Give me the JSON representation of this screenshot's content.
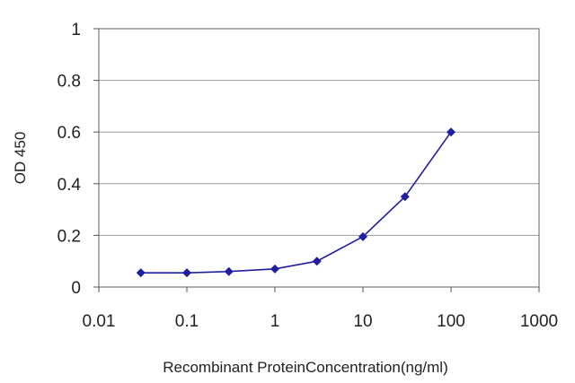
{
  "chart_data": {
    "type": "line",
    "xscale": "log",
    "xlim": [
      0.01,
      1000
    ],
    "ylim": [
      0,
      1
    ],
    "grid": "horizontal",
    "ylabel": "OD 450",
    "xlabel": "Recombinant ProteinConcentration(ng/ml)",
    "yticks": [
      "0",
      "0.2",
      "0.4",
      "0.6",
      "0.8",
      "1"
    ],
    "xticks": [
      "0.01",
      "0.1",
      "1",
      "10",
      "100",
      "1000"
    ],
    "ytick_values": [
      0,
      0.2,
      0.4,
      0.6,
      0.8,
      1
    ],
    "xtick_values": [
      0.01,
      0.1,
      1,
      10,
      100,
      1000
    ],
    "series": [
      {
        "color": "#1f1fa0",
        "marker": "diamond",
        "x": [
          0.03,
          0.1,
          0.3,
          1,
          3,
          10,
          30,
          100
        ],
        "y": [
          0.055,
          0.055,
          0.06,
          0.07,
          0.1,
          0.195,
          0.35,
          0.6
        ]
      }
    ]
  }
}
